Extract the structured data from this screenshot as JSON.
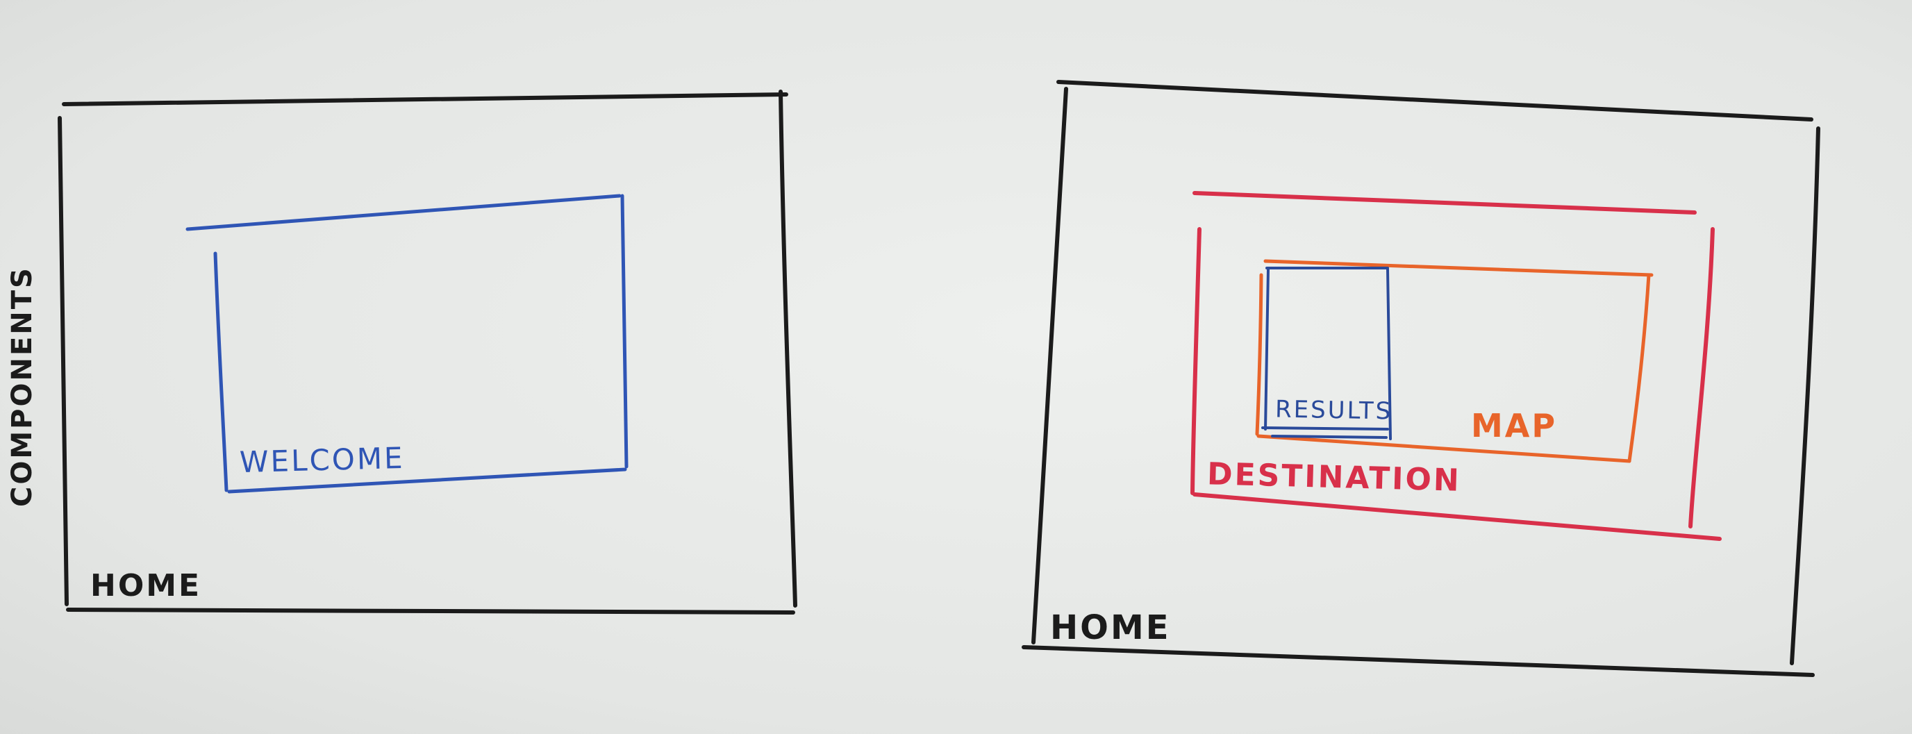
{
  "wireframes": [
    {
      "screen_label": "HOME",
      "side_label": "COMPONENTS",
      "components": [
        {
          "label": "WELCOME",
          "color": "#2f55b5"
        }
      ]
    },
    {
      "screen_label": "HOME",
      "components": [
        {
          "label": "DESTINATION",
          "color": "#d8304a"
        },
        {
          "label": "MAP",
          "color": "#e8642a"
        },
        {
          "label": "RESULTS",
          "color": "#2a4a9a"
        }
      ]
    }
  ],
  "colors": {
    "ink": "#1b1b1b",
    "welcome": "#2f55b5",
    "destination": "#d8304a",
    "map": "#e8642a",
    "results": "#2a4a9a"
  }
}
